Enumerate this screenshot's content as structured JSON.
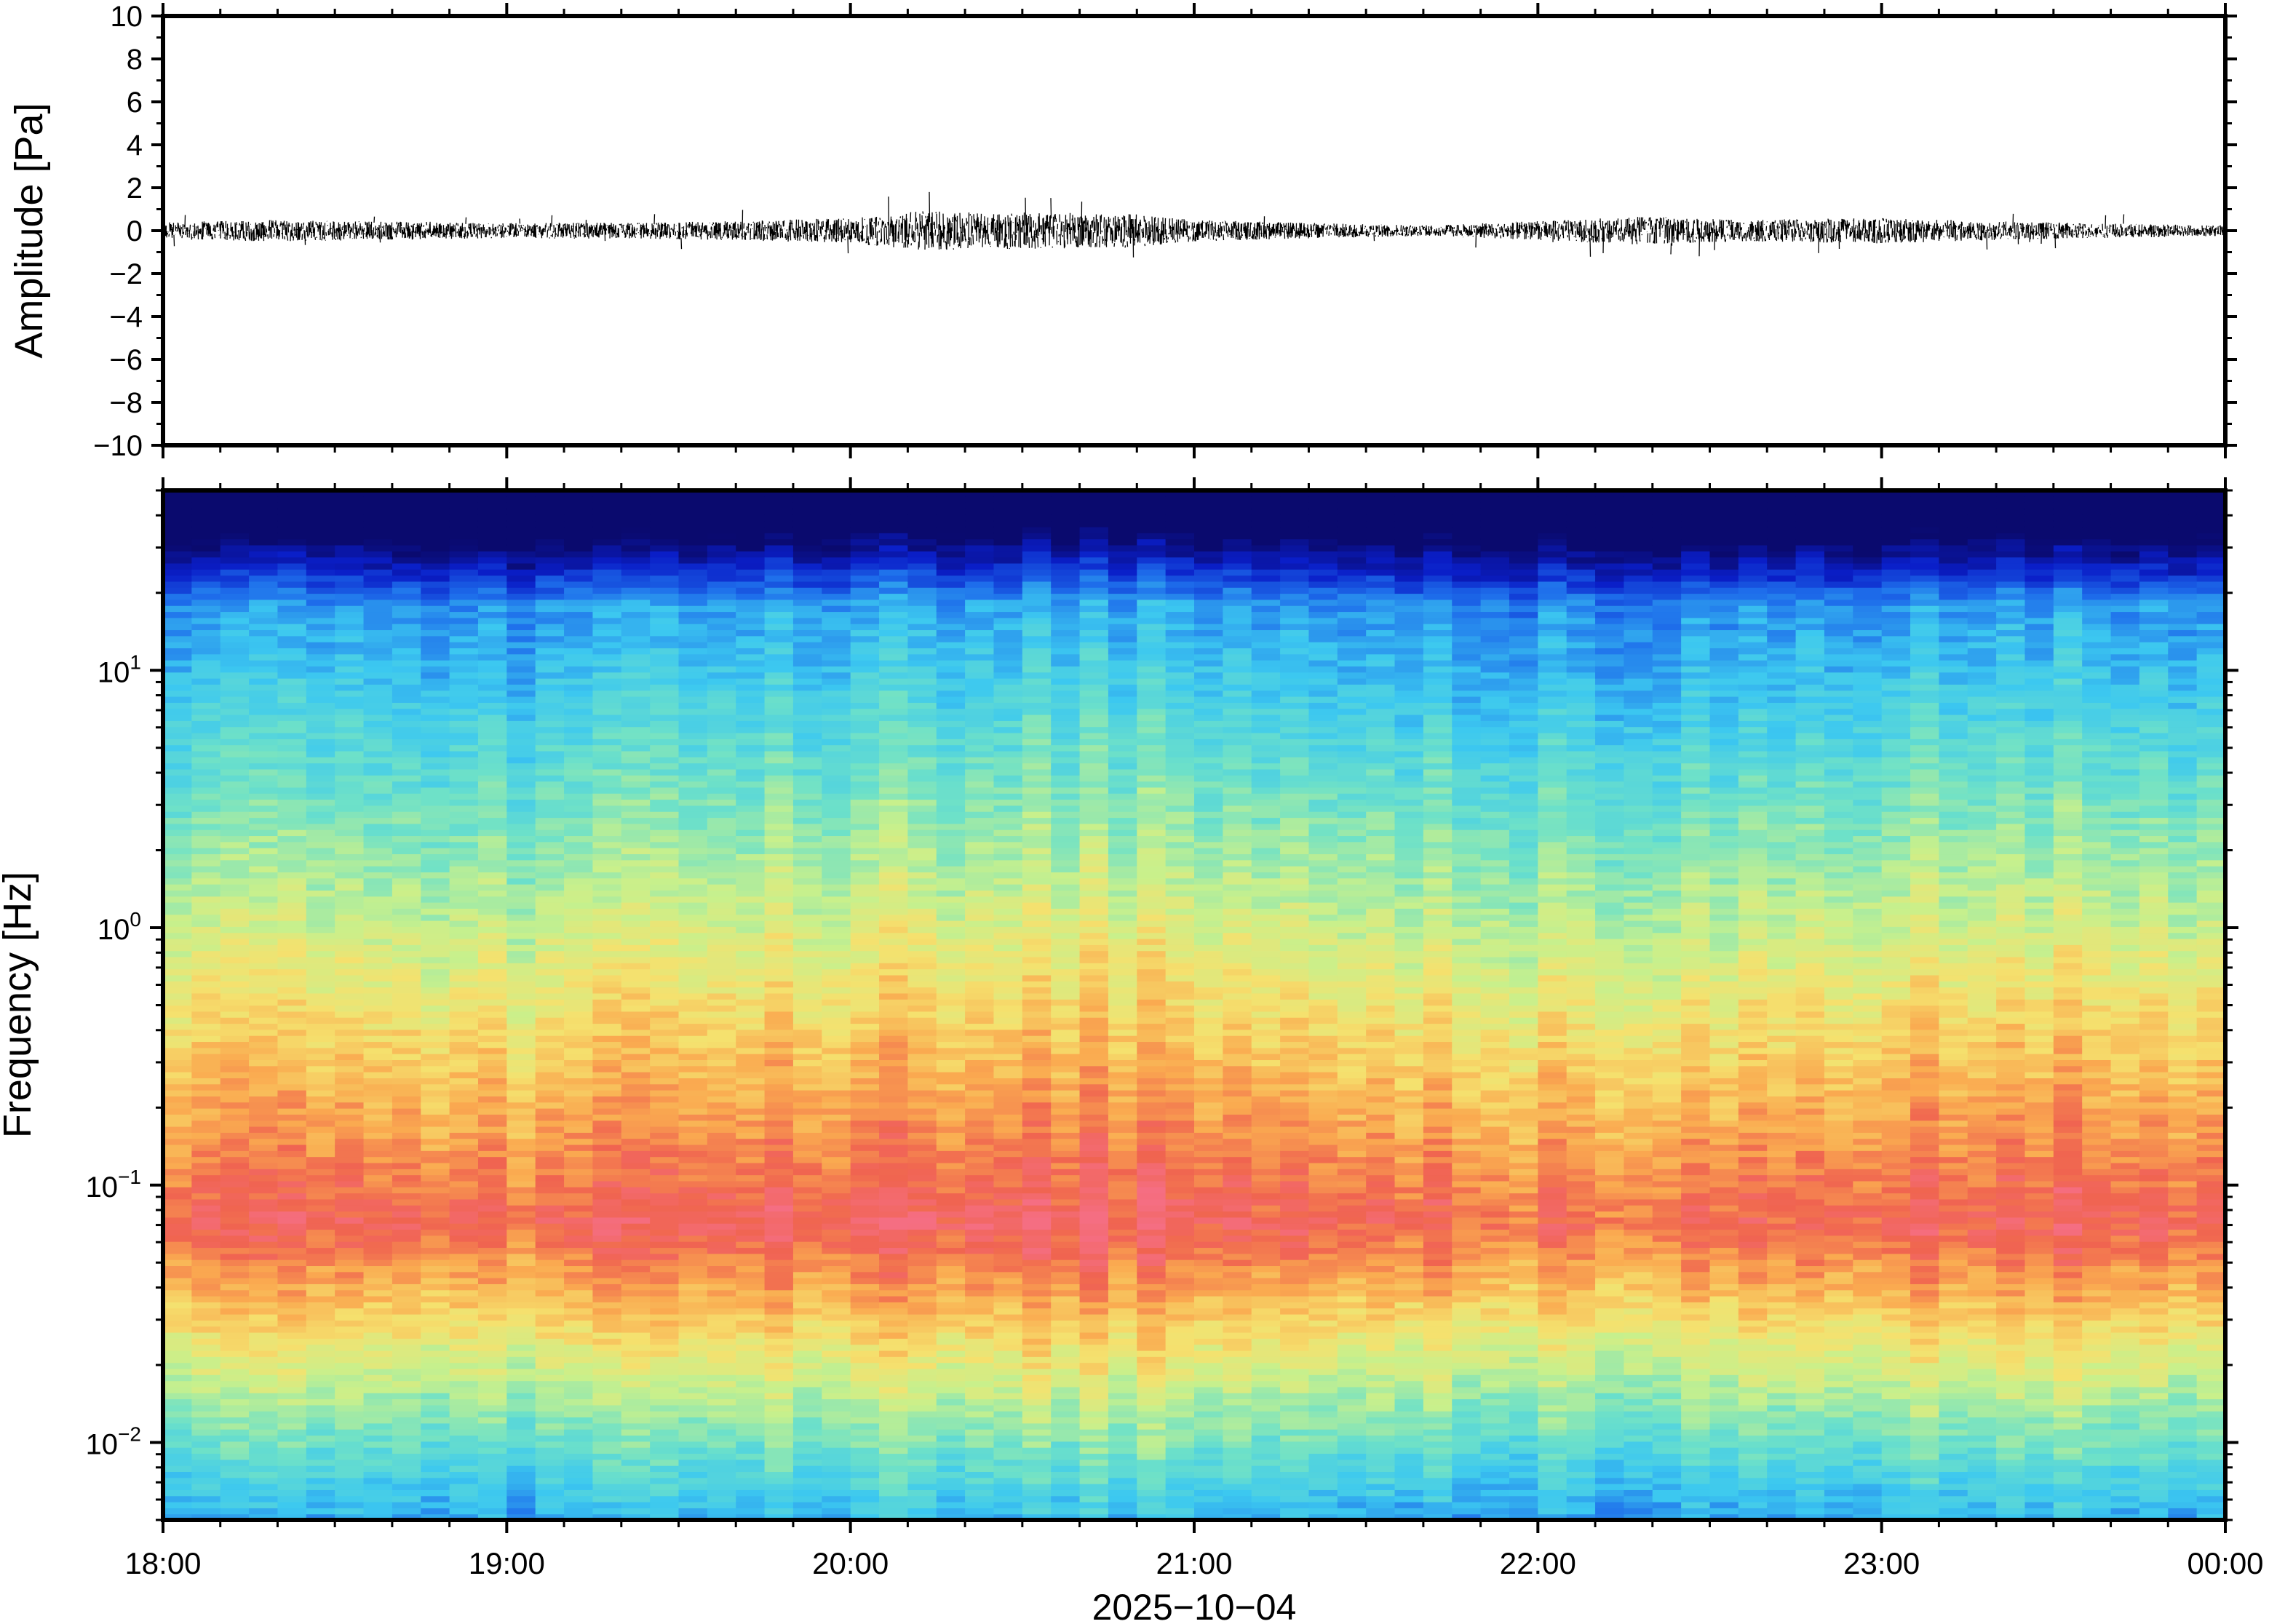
{
  "chart_data": [
    {
      "type": "line",
      "ylabel": "Amplitude [Pa]",
      "ylim": [
        -10,
        10
      ],
      "yticks": [
        "10",
        "8",
        "6",
        "4",
        "2",
        "0",
        "−2",
        "−4",
        "−6",
        "−8",
        "−10"
      ],
      "xlim": [
        "18:00",
        "00:00"
      ],
      "series": [
        {
          "values_description_free": true,
          "envelope_time_hours": [
            0.0,
            0.3,
            0.6,
            1.0,
            1.5,
            1.8,
            2.0,
            2.2,
            2.5,
            2.8,
            3.0,
            3.5,
            3.7,
            4.0,
            4.3,
            4.6,
            5.0,
            5.3,
            5.6,
            6.0
          ],
          "envelope_amplitude_pa": [
            0.4,
            0.5,
            0.45,
            0.35,
            0.4,
            0.5,
            0.6,
            0.9,
            0.85,
            0.8,
            0.5,
            0.3,
            0.25,
            0.45,
            0.65,
            0.5,
            0.6,
            0.45,
            0.35,
            0.25
          ]
        }
      ]
    },
    {
      "type": "heatmap",
      "ylabel": "Frequency [Hz]",
      "yscale": "log",
      "ylim": [
        0.005,
        50
      ],
      "yticks": [
        {
          "base": "10",
          "exp": "−2"
        },
        {
          "base": "10",
          "exp": "−1"
        },
        {
          "base": "10",
          "exp": "0"
        },
        {
          "base": "10",
          "exp": "1"
        }
      ],
      "xlabel": "2025−10−04",
      "xticks": [
        "18:00",
        "19:00",
        "20:00",
        "21:00",
        "22:00",
        "23:00",
        "00:00"
      ],
      "colormap": "rainbow",
      "colors": {
        "low": "#08087a",
        "mid": "#c8f08c",
        "high": "#ee5050"
      },
      "spectral_peak_hz": 0.07,
      "intensity_by_hour": [
        0.7,
        0.65,
        0.85,
        0.9,
        0.6,
        0.8,
        0.75
      ]
    }
  ],
  "labels": {
    "amplitude_ylabel": "Amplitude [Pa]",
    "frequency_ylabel": "Frequency [Hz]",
    "date_label": "2025−10−04"
  }
}
